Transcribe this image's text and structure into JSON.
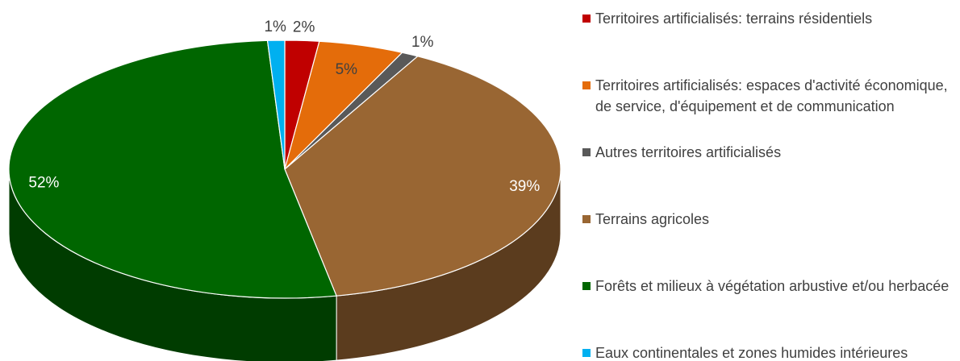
{
  "chart_data": {
    "type": "pie3d",
    "categories": [
      "Territoires artificialisés: terrains résidentiels",
      "Territoires artificialisés: espaces d'activité économique, de service, d'équipement et de communication",
      "Autres territoires artificialisés",
      "Terrains agricoles",
      "Forêts et milieux à végétation arbustive et/ou herbacée",
      "Eaux continentales et zones humides intérieures"
    ],
    "values": [
      2,
      5,
      1,
      39,
      52,
      1
    ],
    "value_labels": [
      "2%",
      "5%",
      "1%",
      "39%",
      "52%",
      "1%"
    ],
    "colors": [
      "#c00000",
      "#e46c0a",
      "#595959",
      "#996633",
      "#006600",
      "#00b0f0"
    ],
    "legend": "right"
  }
}
